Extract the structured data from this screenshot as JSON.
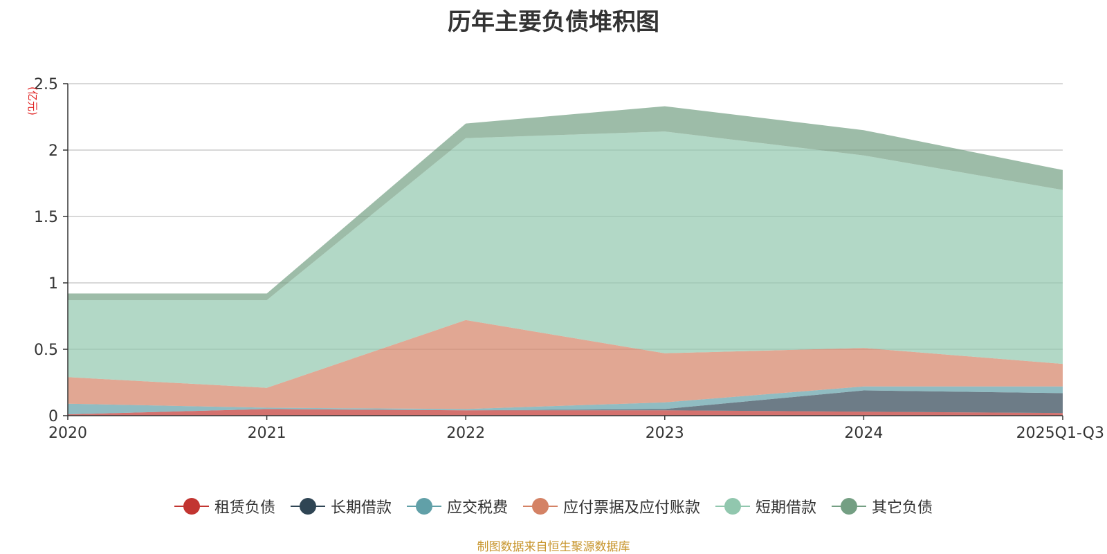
{
  "chart_data": {
    "type": "area",
    "stacked": true,
    "title": "历年主要负债堆积图",
    "ylabel": "(亿元)",
    "xlabel": "",
    "ylim": [
      0,
      2.5
    ],
    "yticks": [
      "0",
      "0.5",
      "1",
      "1.5",
      "2",
      "2.5"
    ],
    "categories": [
      "2020",
      "2021",
      "2022",
      "2023",
      "2024",
      "2025Q1-Q3"
    ],
    "grid": true,
    "legend_position": "bottom",
    "series": [
      {
        "name": "租赁负债",
        "color": "#c23531",
        "values": [
          0.01,
          0.05,
          0.04,
          0.04,
          0.03,
          0.02
        ]
      },
      {
        "name": "长期借款",
        "color": "#2f4554",
        "values": [
          0.0,
          0.0,
          0.0,
          0.01,
          0.16,
          0.15
        ]
      },
      {
        "name": "应交税费",
        "color": "#61a0a8",
        "values": [
          0.08,
          0.01,
          0.01,
          0.05,
          0.03,
          0.05
        ]
      },
      {
        "name": "应付票据及应付账款",
        "color": "#d48265",
        "values": [
          0.2,
          0.15,
          0.67,
          0.37,
          0.29,
          0.17
        ]
      },
      {
        "name": "短期借款",
        "color": "#91c7ae",
        "values": [
          0.58,
          0.66,
          1.37,
          1.67,
          1.45,
          1.31
        ]
      },
      {
        "name": "其它负债",
        "color": "#749f83",
        "values": [
          0.05,
          0.05,
          0.11,
          0.19,
          0.19,
          0.15
        ]
      }
    ],
    "source": "制图数据来自恒生聚源数据库"
  }
}
